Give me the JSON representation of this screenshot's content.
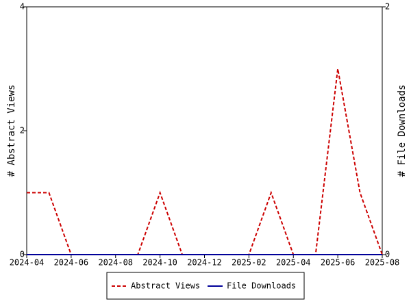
{
  "chart_data": {
    "type": "line",
    "x": [
      "2024-04",
      "2024-05",
      "2024-06",
      "2024-07",
      "2024-08",
      "2024-09",
      "2024-10",
      "2024-11",
      "2024-12",
      "2025-01",
      "2025-02",
      "2025-03",
      "2025-04",
      "2025-05",
      "2025-06",
      "2025-07",
      "2025-08"
    ],
    "xticks": [
      "2024-04",
      "2024-06",
      "2024-08",
      "2024-10",
      "2024-12",
      "2025-02",
      "2025-04",
      "2025-06",
      "2025-08"
    ],
    "series": [
      {
        "name": "Abstract Views",
        "color": "#cc0000",
        "dash": true,
        "axis": "y",
        "values": [
          1,
          1,
          0,
          0,
          0,
          0,
          1,
          0,
          0,
          0,
          0,
          1,
          0,
          0,
          3,
          1,
          0
        ]
      },
      {
        "name": "File Downloads",
        "color": "#000099",
        "dash": false,
        "axis": "y2",
        "values": [
          0,
          0,
          0,
          0,
          0,
          0,
          0,
          0,
          0,
          0,
          0,
          0,
          0,
          0,
          0,
          0,
          0
        ]
      }
    ],
    "ylabel": "# Abstract Views",
    "y2label": "# File Downloads",
    "ylim": [
      0,
      4
    ],
    "yticks": [
      0,
      2,
      4
    ],
    "y2lim": [
      0,
      2
    ],
    "y2ticks": [
      0,
      2
    ],
    "legend": "bottom"
  }
}
